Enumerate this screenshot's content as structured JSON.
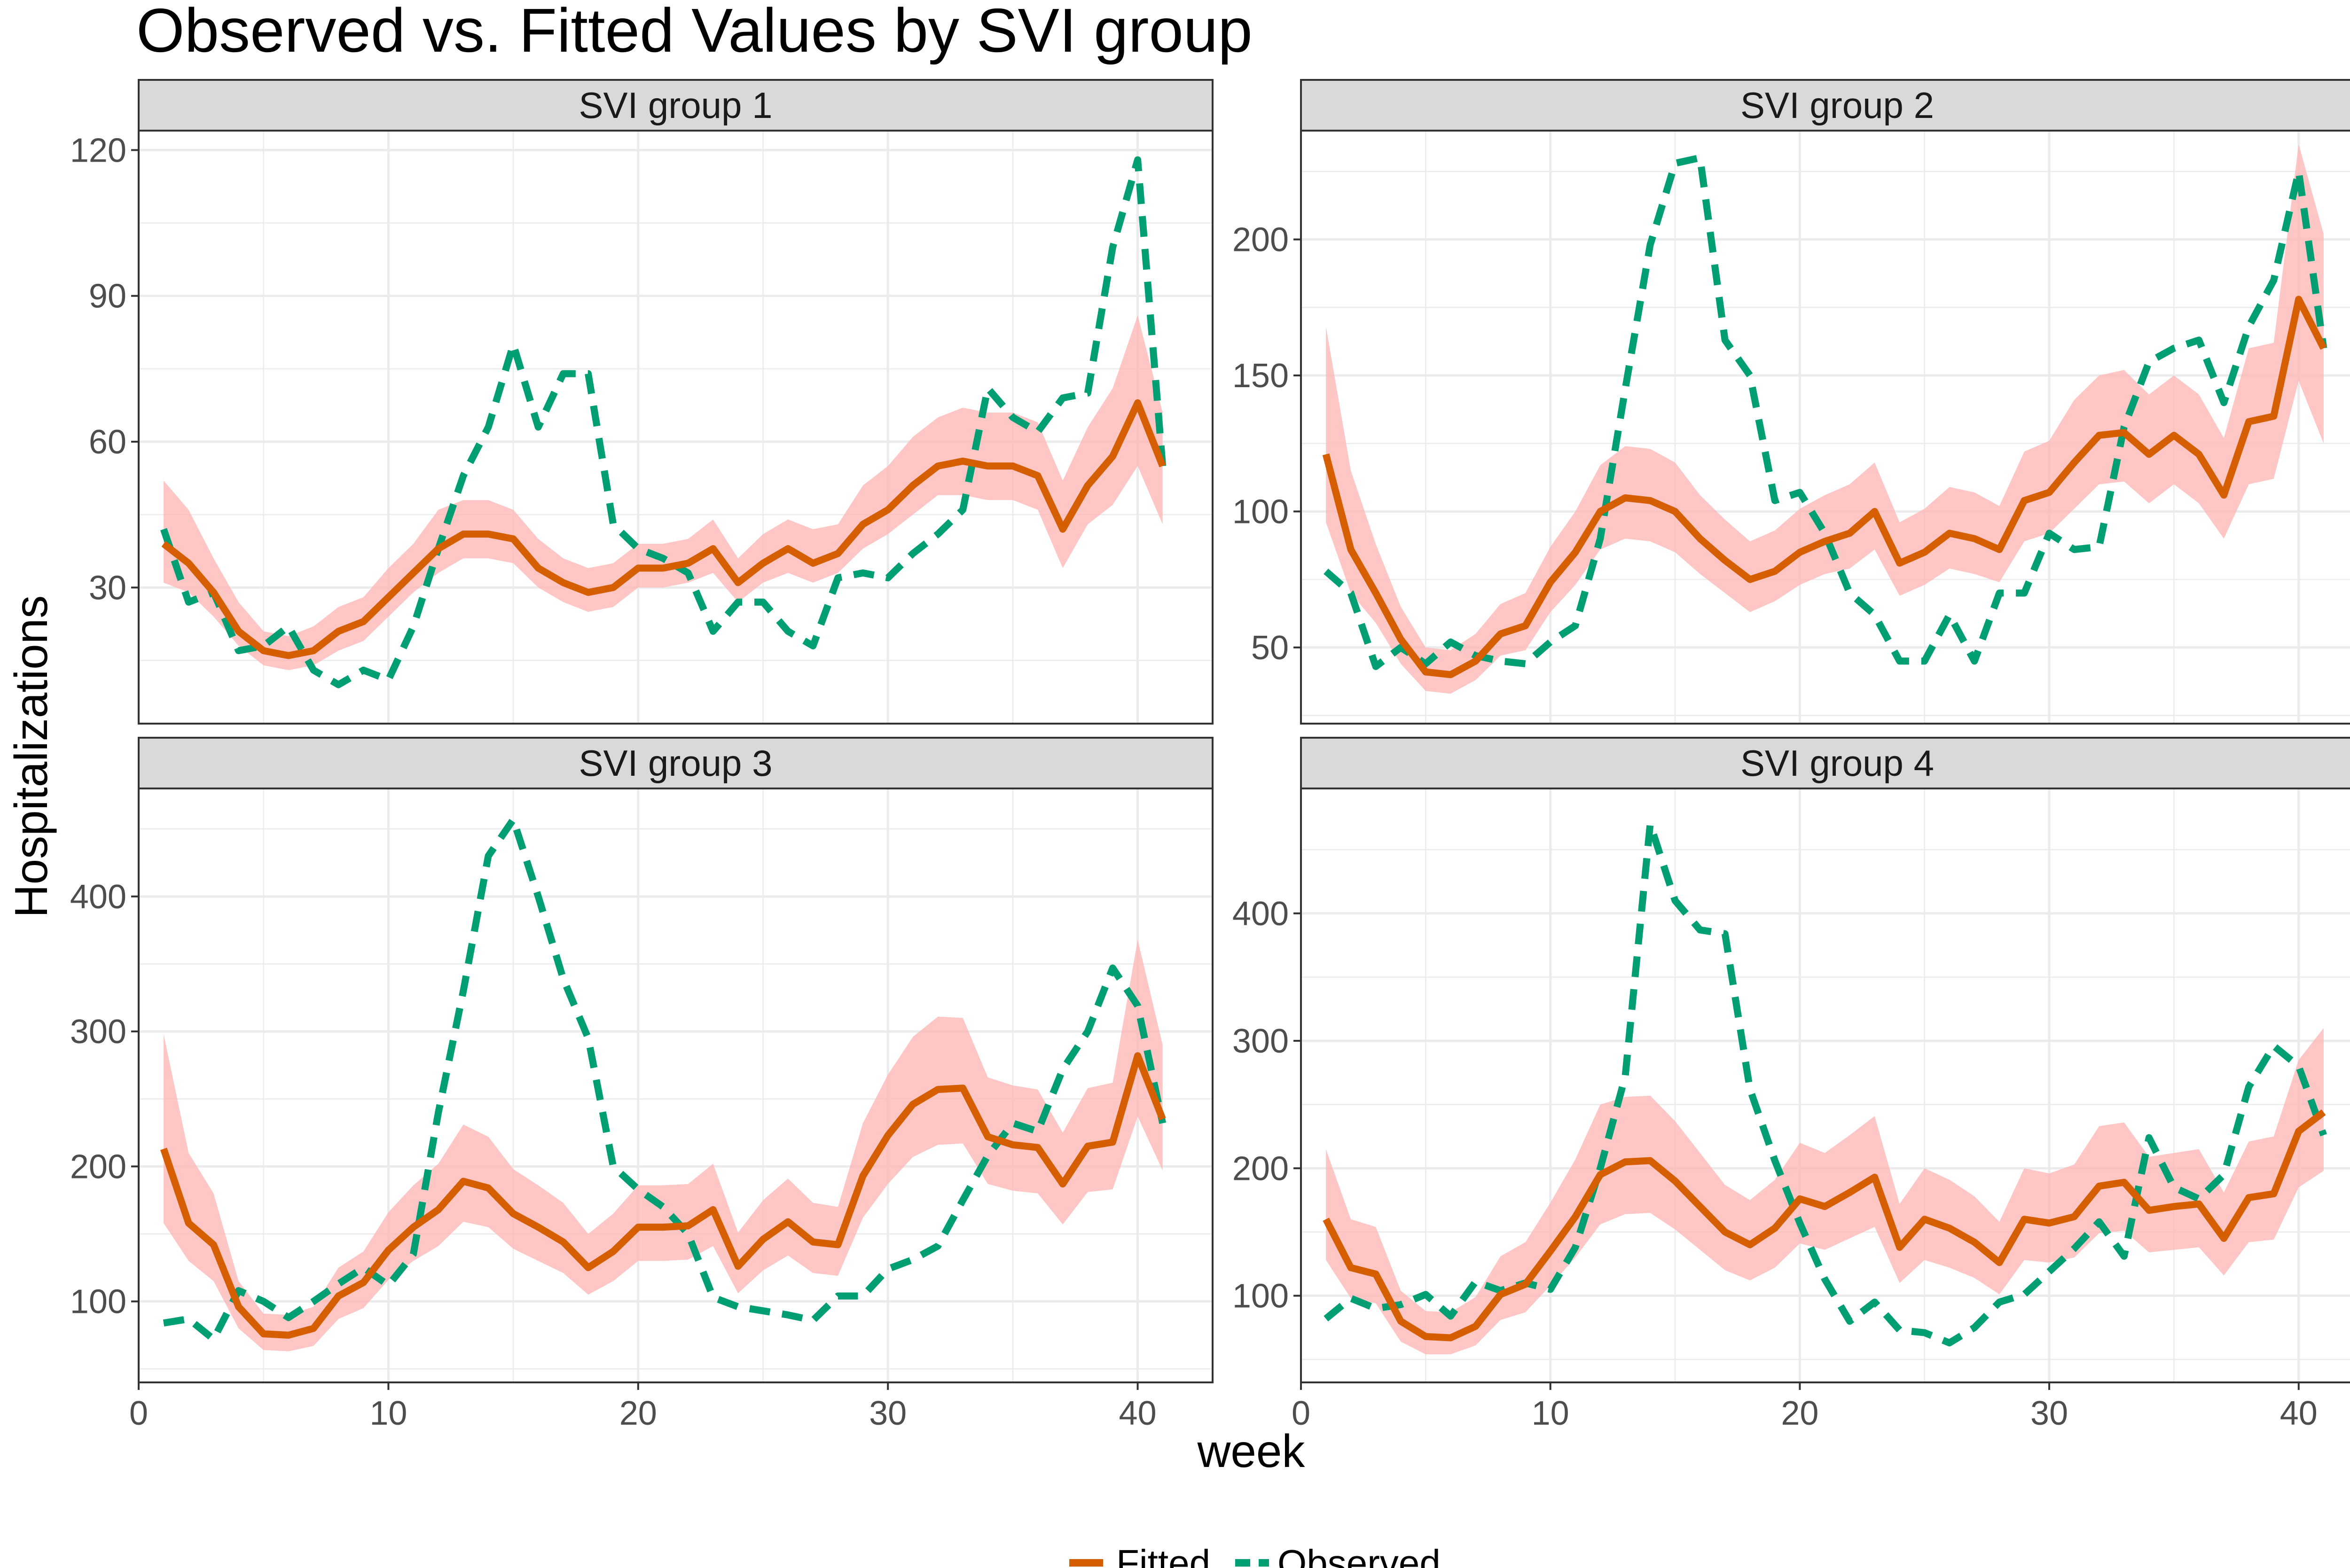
{
  "chart_data": {
    "type": "line",
    "title": "Observed vs. Fitted Values by SVI group",
    "xlabel": "week",
    "ylabel": "Hospitalizations",
    "legend": {
      "placement": "bottom",
      "entries": [
        {
          "name": "Fitted",
          "color": "#D55E00",
          "style": "solid"
        },
        {
          "name": "Observed",
          "color": "#009E73",
          "style": "dashed"
        }
      ]
    },
    "colors": {
      "fitted": "#D55E00",
      "band": "#FFB3B3",
      "observed": "#009E73",
      "strip_bg": "#D9D9D9",
      "grid": "#EBEBEB"
    },
    "grid": true,
    "x": [
      1,
      2,
      3,
      4,
      5,
      6,
      7,
      8,
      9,
      10,
      11,
      12,
      13,
      14,
      15,
      16,
      17,
      18,
      19,
      20,
      21,
      22,
      23,
      24,
      25,
      26,
      27,
      28,
      29,
      30,
      31,
      32,
      33,
      34,
      35,
      36,
      37,
      38,
      39,
      40,
      41
    ],
    "xlim": [
      0,
      43
    ],
    "xticks": [
      0,
      10,
      20,
      30,
      40
    ],
    "panels": [
      {
        "strip": "SVI group 1",
        "ylim": [
          2,
          124
        ],
        "yticks": [
          30,
          60,
          90,
          120
        ],
        "fitted": [
          39,
          35,
          29,
          21,
          17,
          16,
          17,
          21,
          23,
          28,
          33,
          38,
          41,
          41,
          40,
          34,
          31,
          29,
          30,
          34,
          34,
          35,
          38,
          31,
          35,
          38,
          35,
          37,
          43,
          46,
          51,
          55,
          56,
          55,
          55,
          53,
          42,
          51,
          57,
          68,
          55
        ],
        "lower": [
          31,
          29,
          24,
          18,
          14,
          13,
          14,
          17,
          19,
          24,
          29,
          33,
          36,
          36,
          35,
          30,
          27,
          25,
          26,
          30,
          30,
          31,
          33,
          27,
          31,
          33,
          31,
          33,
          38,
          41,
          45,
          49,
          49,
          48,
          48,
          46,
          34,
          43,
          47,
          55,
          43
        ],
        "upper": [
          52,
          46,
          36,
          27,
          21,
          20,
          22,
          26,
          28,
          34,
          39,
          46,
          48,
          48,
          46,
          40,
          36,
          34,
          35,
          39,
          39,
          40,
          44,
          36,
          41,
          44,
          42,
          43,
          51,
          55,
          61,
          65,
          67,
          66,
          66,
          64,
          52,
          63,
          71,
          86,
          66
        ],
        "observed": [
          42,
          27,
          29,
          17,
          18,
          22,
          13,
          10,
          13,
          11,
          22,
          38,
          53,
          63,
          80,
          63,
          74,
          74,
          43,
          38,
          36,
          33,
          21,
          27,
          27,
          21,
          18,
          32,
          33,
          32,
          37,
          41,
          46,
          71,
          65,
          62,
          69,
          70,
          100,
          118,
          55
        ]
      },
      {
        "strip": "SVI group 2",
        "ylim": [
          22,
          240
        ],
        "yticks": [
          50,
          100,
          150,
          200
        ],
        "fitted": [
          121,
          86,
          70,
          53,
          41,
          40,
          45,
          55,
          58,
          74,
          85,
          100,
          105,
          104,
          100,
          90,
          82,
          75,
          78,
          85,
          89,
          92,
          100,
          81,
          85,
          92,
          90,
          86,
          104,
          107,
          118,
          128,
          129,
          121,
          128,
          121,
          106,
          133,
          135,
          178,
          160
        ],
        "lower": [
          96,
          70,
          59,
          44,
          34,
          33,
          38,
          47,
          49,
          63,
          73,
          86,
          90,
          89,
          85,
          77,
          70,
          63,
          67,
          73,
          77,
          79,
          86,
          69,
          73,
          79,
          77,
          74,
          89,
          92,
          101,
          110,
          111,
          103,
          110,
          103,
          90,
          110,
          112,
          148,
          125
        ],
        "upper": [
          168,
          115,
          88,
          65,
          50,
          49,
          55,
          66,
          70,
          87,
          100,
          117,
          124,
          123,
          118,
          106,
          97,
          89,
          93,
          101,
          106,
          110,
          118,
          96,
          101,
          109,
          107,
          102,
          122,
          126,
          141,
          150,
          152,
          143,
          150,
          143,
          127,
          160,
          162,
          235,
          202
        ],
        "observed": [
          78,
          70,
          43,
          50,
          44,
          52,
          47,
          45,
          44,
          52,
          58,
          90,
          145,
          198,
          228,
          230,
          163,
          150,
          104,
          107,
          92,
          70,
          62,
          45,
          45,
          62,
          45,
          70,
          70,
          92,
          86,
          87,
          131,
          155,
          160,
          163,
          140,
          168,
          185,
          225,
          160
        ]
      },
      {
        "strip": "SVI group 3",
        "ylim": [
          40,
          480
        ],
        "yticks": [
          100,
          200,
          300,
          400
        ],
        "fitted": [
          213,
          158,
          142,
          96,
          76,
          75,
          80,
          104,
          114,
          138,
          155,
          168,
          189,
          184,
          165,
          155,
          144,
          125,
          137,
          155,
          155,
          156,
          168,
          126,
          146,
          159,
          144,
          142,
          193,
          223,
          246,
          257,
          258,
          222,
          216,
          214,
          187,
          215,
          218,
          282,
          235
        ],
        "lower": [
          158,
          130,
          115,
          80,
          64,
          63,
          67,
          87,
          95,
          116,
          130,
          141,
          159,
          155,
          139,
          130,
          121,
          105,
          115,
          130,
          130,
          131,
          141,
          106,
          123,
          134,
          121,
          119,
          162,
          187,
          207,
          216,
          217,
          187,
          182,
          180,
          157,
          181,
          183,
          237,
          197
        ],
        "upper": [
          298,
          210,
          180,
          115,
          91,
          90,
          96,
          125,
          137,
          166,
          186,
          202,
          231,
          222,
          198,
          186,
          173,
          150,
          165,
          186,
          186,
          187,
          202,
          151,
          175,
          191,
          173,
          170,
          232,
          268,
          296,
          311,
          310,
          266,
          260,
          257,
          225,
          258,
          262,
          368,
          290
        ],
        "observed": [
          84,
          87,
          72,
          108,
          100,
          88,
          100,
          113,
          125,
          112,
          135,
          240,
          330,
          430,
          457,
          400,
          339,
          295,
          200,
          183,
          170,
          150,
          103,
          96,
          93,
          90,
          86,
          104,
          104,
          124,
          131,
          141,
          175,
          208,
          232,
          226,
          272,
          300,
          347,
          319,
          232
        ]
      },
      {
        "strip": "SVI group 4",
        "ylim": [
          32,
          498
        ],
        "yticks": [
          100,
          200,
          300,
          400
        ],
        "fitted": [
          160,
          122,
          117,
          80,
          68,
          67,
          76,
          101,
          109,
          135,
          162,
          195,
          205,
          206,
          190,
          170,
          150,
          140,
          153,
          176,
          170,
          181,
          193,
          138,
          160,
          153,
          142,
          126,
          160,
          157,
          162,
          186,
          189,
          167,
          170,
          172,
          145,
          177,
          180,
          229,
          244
        ],
        "lower": [
          128,
          98,
          94,
          64,
          54,
          54,
          61,
          81,
          87,
          108,
          130,
          156,
          164,
          165,
          152,
          136,
          120,
          112,
          122,
          141,
          136,
          145,
          154,
          110,
          128,
          122,
          114,
          101,
          128,
          126,
          130,
          149,
          151,
          134,
          136,
          138,
          116,
          142,
          144,
          185,
          198
        ],
        "upper": [
          215,
          160,
          154,
          104,
          88,
          87,
          99,
          131,
          142,
          173,
          207,
          250,
          256,
          257,
          237,
          212,
          187,
          175,
          191,
          220,
          212,
          226,
          241,
          172,
          200,
          191,
          178,
          158,
          200,
          196,
          203,
          233,
          236,
          209,
          212,
          215,
          181,
          221,
          225,
          285,
          310
        ],
        "observed": [
          82,
          98,
          90,
          93,
          101,
          84,
          111,
          104,
          110,
          105,
          138,
          200,
          272,
          470,
          410,
          387,
          384,
          262,
          206,
          157,
          113,
          80,
          95,
          73,
          71,
          63,
          75,
          95,
          101,
          119,
          137,
          158,
          131,
          224,
          185,
          176,
          195,
          264,
          296,
          280,
          226
        ]
      }
    ]
  }
}
